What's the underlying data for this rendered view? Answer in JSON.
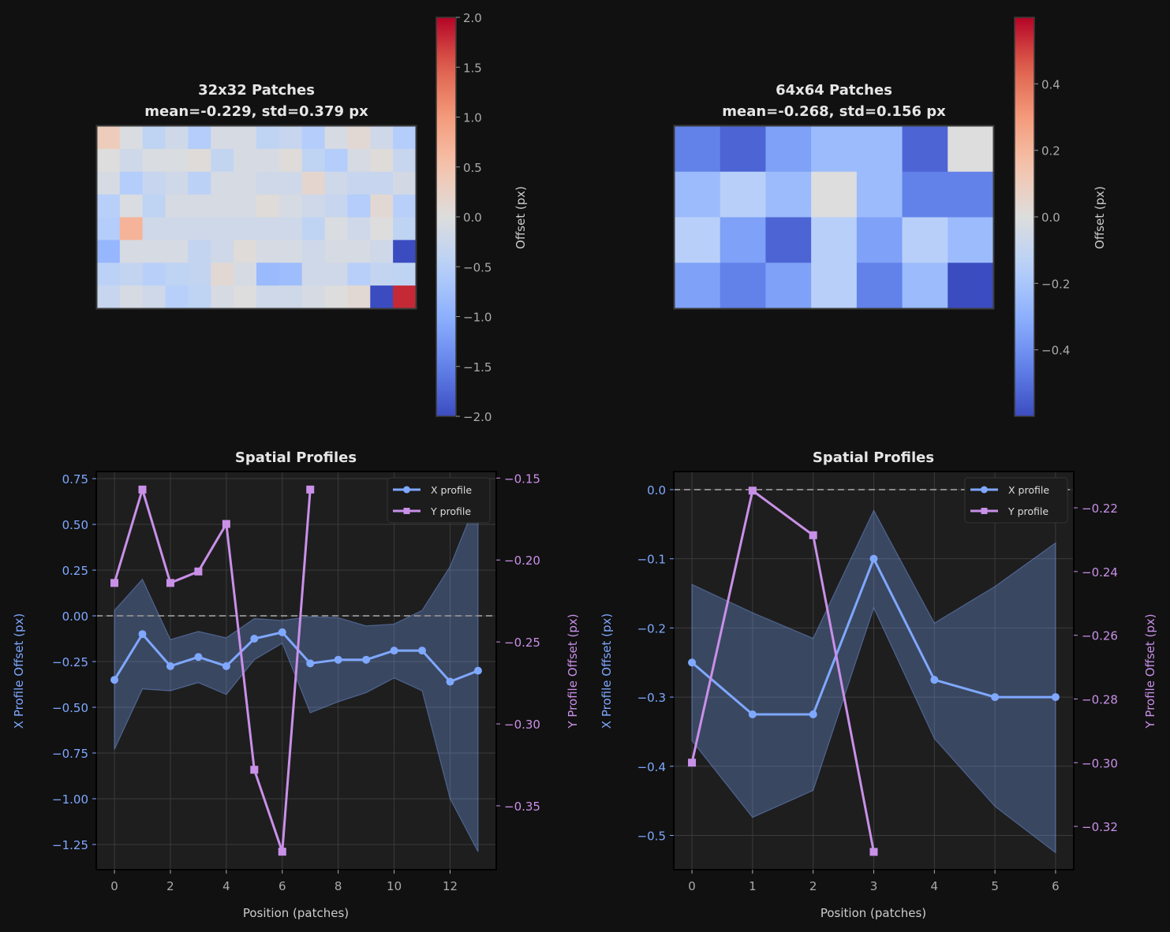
{
  "chart_data": [
    {
      "type": "heatmap",
      "title": "32x32 Patches\nmean=-0.229, std=0.379 px",
      "title_lines": [
        "32x32 Patches",
        "mean=-0.229, std=0.379 px"
      ],
      "colormap": "coolwarm",
      "vmin": -2.0,
      "vmax": 2.0,
      "colorbar": {
        "label": "Offset (px)",
        "ticks": [
          2.0,
          1.5,
          1.0,
          0.5,
          0.0,
          -0.5,
          -1.0,
          -1.5,
          -2.0
        ],
        "tick_labels": [
          "2.0",
          "1.5",
          "1.0",
          "0.5",
          "0.0",
          "−0.5",
          "−1.0",
          "−1.5",
          "−2.0"
        ]
      },
      "rows": 8,
      "cols": 14,
      "values": [
        [
          0.35,
          -0.05,
          -0.4,
          -0.2,
          -0.55,
          -0.1,
          -0.1,
          -0.4,
          -0.3,
          -0.55,
          -0.1,
          0.1,
          -0.2,
          -0.55
        ],
        [
          0.0,
          -0.2,
          -0.05,
          -0.05,
          0.05,
          -0.35,
          -0.1,
          -0.1,
          0.05,
          -0.4,
          -0.55,
          -0.1,
          0.05,
          -0.3
        ],
        [
          -0.1,
          -0.55,
          -0.3,
          -0.2,
          -0.45,
          -0.1,
          -0.1,
          -0.2,
          -0.2,
          0.15,
          -0.2,
          -0.3,
          -0.3,
          -0.15
        ],
        [
          -0.5,
          -0.05,
          -0.4,
          -0.1,
          -0.1,
          -0.1,
          -0.1,
          0.05,
          -0.1,
          -0.2,
          -0.3,
          -0.55,
          0.1,
          -0.5
        ],
        [
          -0.55,
          0.7,
          -0.2,
          -0.2,
          -0.2,
          -0.2,
          -0.2,
          -0.2,
          -0.2,
          -0.4,
          -0.05,
          -0.2,
          0.0,
          -0.4
        ],
        [
          -0.9,
          -0.1,
          -0.1,
          -0.1,
          -0.35,
          -0.2,
          0.05,
          -0.1,
          -0.1,
          -0.2,
          -0.1,
          -0.1,
          -0.2,
          -2.0
        ],
        [
          -0.45,
          -0.35,
          -0.5,
          -0.4,
          -0.35,
          0.1,
          -0.1,
          -0.85,
          -0.8,
          -0.2,
          -0.2,
          -0.5,
          -0.35,
          -0.4
        ],
        [
          -0.3,
          -0.1,
          -0.2,
          -0.5,
          -0.4,
          -0.1,
          0.0,
          -0.2,
          -0.2,
          -0.1,
          0.0,
          0.1,
          -2.0,
          1.8
        ]
      ]
    },
    {
      "type": "heatmap",
      "title": "64x64 Patches\nmean=-0.268, std=0.156 px",
      "title_lines": [
        "64x64 Patches",
        "mean=-0.268, std=0.156 px"
      ],
      "colormap": "coolwarm",
      "vmin": -0.6,
      "vmax": 0.6,
      "colorbar": {
        "label": "Offset (px)",
        "ticks": [
          0.4,
          0.2,
          0.0,
          -0.2,
          -0.4
        ],
        "tick_labels": [
          "0.4",
          "0.2",
          "0.0",
          "−0.2",
          "−0.4"
        ]
      },
      "rows": 4,
      "cols": 7,
      "values": [
        [
          -0.45,
          -0.53,
          -0.35,
          -0.25,
          -0.25,
          -0.53,
          0.0
        ],
        [
          -0.25,
          -0.15,
          -0.25,
          0.0,
          -0.25,
          -0.45,
          -0.45
        ],
        [
          -0.15,
          -0.35,
          -0.53,
          -0.15,
          -0.35,
          -0.15,
          -0.25
        ],
        [
          -0.35,
          -0.45,
          -0.35,
          -0.15,
          -0.45,
          -0.25,
          -0.6
        ]
      ]
    },
    {
      "type": "line",
      "title": "Spatial Profiles",
      "xlabel": "Position (patches)",
      "ylabel": "X Profile Offset (px)",
      "ylabel_right": "Y Profile Offset (px)",
      "xlim": [
        -0.65,
        13.65
      ],
      "ylim": [
        -1.388,
        0.789
      ],
      "ylim_right": [
        -0.389,
        -0.146
      ],
      "grid": true,
      "legend": "top-right",
      "reference_line": 0.0,
      "xticks": [
        0,
        2,
        4,
        6,
        8,
        10,
        12
      ],
      "xtick_labels": [
        "0",
        "2",
        "4",
        "6",
        "8",
        "10",
        "12"
      ],
      "yticks": [
        0.75,
        0.5,
        0.25,
        0.0,
        -0.25,
        -0.5,
        -0.75,
        -1.0,
        -1.25
      ],
      "ytick_labels": [
        "0.75",
        "0.50",
        "0.25",
        "0.00",
        "−0.25",
        "−0.50",
        "−0.75",
        "−1.00",
        "−1.25"
      ],
      "yticks_right": [
        -0.15,
        -0.2,
        -0.25,
        -0.3,
        -0.35
      ],
      "ytick_labels_right": [
        "−0.15",
        "−0.20",
        "−0.25",
        "−0.30",
        "−0.35"
      ],
      "series": [
        {
          "name": "X profile",
          "axis": "left",
          "color": "#7fa8ff",
          "marker": "circle",
          "x": [
            0,
            1,
            2,
            3,
            4,
            5,
            6,
            7,
            8,
            9,
            10,
            11,
            12,
            13
          ],
          "values": [
            -0.35,
            -0.1,
            -0.275,
            -0.225,
            -0.275,
            -0.125,
            -0.09,
            -0.26,
            -0.24,
            -0.24,
            -0.19,
            -0.19,
            -0.36,
            -0.3
          ],
          "band_upper": [
            0.03,
            0.2,
            -0.13,
            -0.085,
            -0.12,
            -0.015,
            -0.025,
            -0.005,
            -0.01,
            -0.055,
            -0.045,
            0.03,
            0.27,
            0.65
          ],
          "band_lower": [
            -0.73,
            -0.4,
            -0.41,
            -0.365,
            -0.43,
            -0.24,
            -0.15,
            -0.53,
            -0.47,
            -0.42,
            -0.34,
            -0.41,
            -1.0,
            -1.29
          ]
        },
        {
          "name": "Y profile",
          "axis": "right",
          "color": "#c990e8",
          "marker": "square",
          "x": [
            0,
            1,
            2,
            3,
            4,
            5,
            6,
            7
          ],
          "values": [
            -0.214,
            -0.157,
            -0.214,
            -0.207,
            -0.178,
            -0.328,
            -0.378,
            -0.157
          ]
        }
      ]
    },
    {
      "type": "line",
      "title": "Spatial Profiles",
      "xlabel": "Position (patches)",
      "ylabel": "X Profile Offset (px)",
      "ylabel_right": "Y Profile Offset (px)",
      "xlim": [
        -0.3,
        6.3
      ],
      "ylim": [
        -0.5496,
        0.0262
      ],
      "ylim_right": [
        -0.3336,
        -0.2086
      ],
      "grid": true,
      "legend": "top-right",
      "reference_line": 0.0,
      "xticks": [
        0,
        1,
        2,
        3,
        4,
        5,
        6
      ],
      "xtick_labels": [
        "0",
        "1",
        "2",
        "3",
        "4",
        "5",
        "6"
      ],
      "yticks": [
        0.0,
        -0.1,
        -0.2,
        -0.3,
        -0.4,
        -0.5
      ],
      "ytick_labels": [
        "0.0",
        "−0.1",
        "−0.2",
        "−0.3",
        "−0.4",
        "−0.5"
      ],
      "yticks_right": [
        -0.22,
        -0.24,
        -0.26,
        -0.28,
        -0.3,
        -0.32
      ],
      "ytick_labels_right": [
        "−0.22",
        "−0.24",
        "−0.26",
        "−0.28",
        "−0.30",
        "−0.32"
      ],
      "series": [
        {
          "name": "X profile",
          "axis": "left",
          "color": "#7fa8ff",
          "marker": "circle",
          "x": [
            0,
            1,
            2,
            3,
            4,
            5,
            6
          ],
          "values": [
            -0.25,
            -0.325,
            -0.325,
            -0.1,
            -0.275,
            -0.3,
            -0.3
          ],
          "band_upper": [
            -0.137,
            -0.178,
            -0.215,
            -0.03,
            -0.193,
            -0.14,
            -0.077
          ],
          "band_lower": [
            -0.363,
            -0.474,
            -0.435,
            -0.171,
            -0.36,
            -0.458,
            -0.525
          ]
        },
        {
          "name": "Y profile",
          "axis": "right",
          "color": "#c990e8",
          "marker": "square",
          "x": [
            0,
            1,
            2,
            3
          ],
          "values": [
            -0.3,
            -0.2146,
            -0.2286,
            -0.328
          ]
        }
      ]
    }
  ]
}
